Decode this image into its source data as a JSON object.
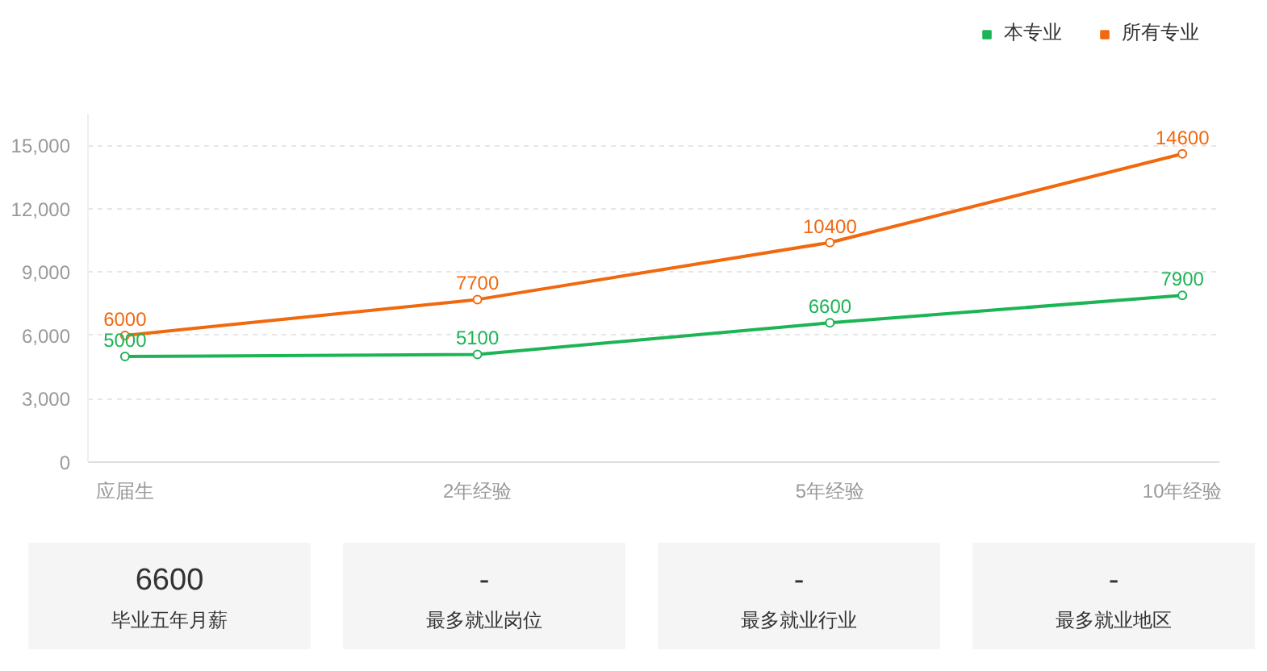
{
  "chart_data": [
    {
      "type": "line",
      "categories": [
        "应届生",
        "2年经验",
        "5年经验",
        "10年经验"
      ],
      "series": [
        {
          "name": "本专业",
          "color": "#1db456",
          "values": [
            5000,
            5100,
            6600,
            7900
          ]
        },
        {
          "name": "所有专业",
          "color": "#f0690f",
          "values": [
            6000,
            7700,
            10400,
            14600
          ]
        }
      ],
      "ylim": [
        0,
        16500
      ],
      "yticks": [
        0,
        {
          "value": 3000,
          "label": "3,000"
        },
        {
          "value": 6000,
          "label": "6,000"
        },
        {
          "value": 9000,
          "label": "9,000"
        },
        {
          "value": 12000,
          "label": "12,000"
        },
        {
          "value": 15000,
          "label": "15,000"
        }
      ],
      "grid": "y",
      "legend": "top right",
      "marker": "circle",
      "line_style": "solid",
      "data_labels": true
    },
    {
      "type": "other",
      "annotations": [
        "6600",
        "毕业五年月薪",
        "-",
        "最多就业岗位",
        "-",
        "最多就业行业",
        "-",
        "最多就业地区"
      ]
    }
  ]
}
